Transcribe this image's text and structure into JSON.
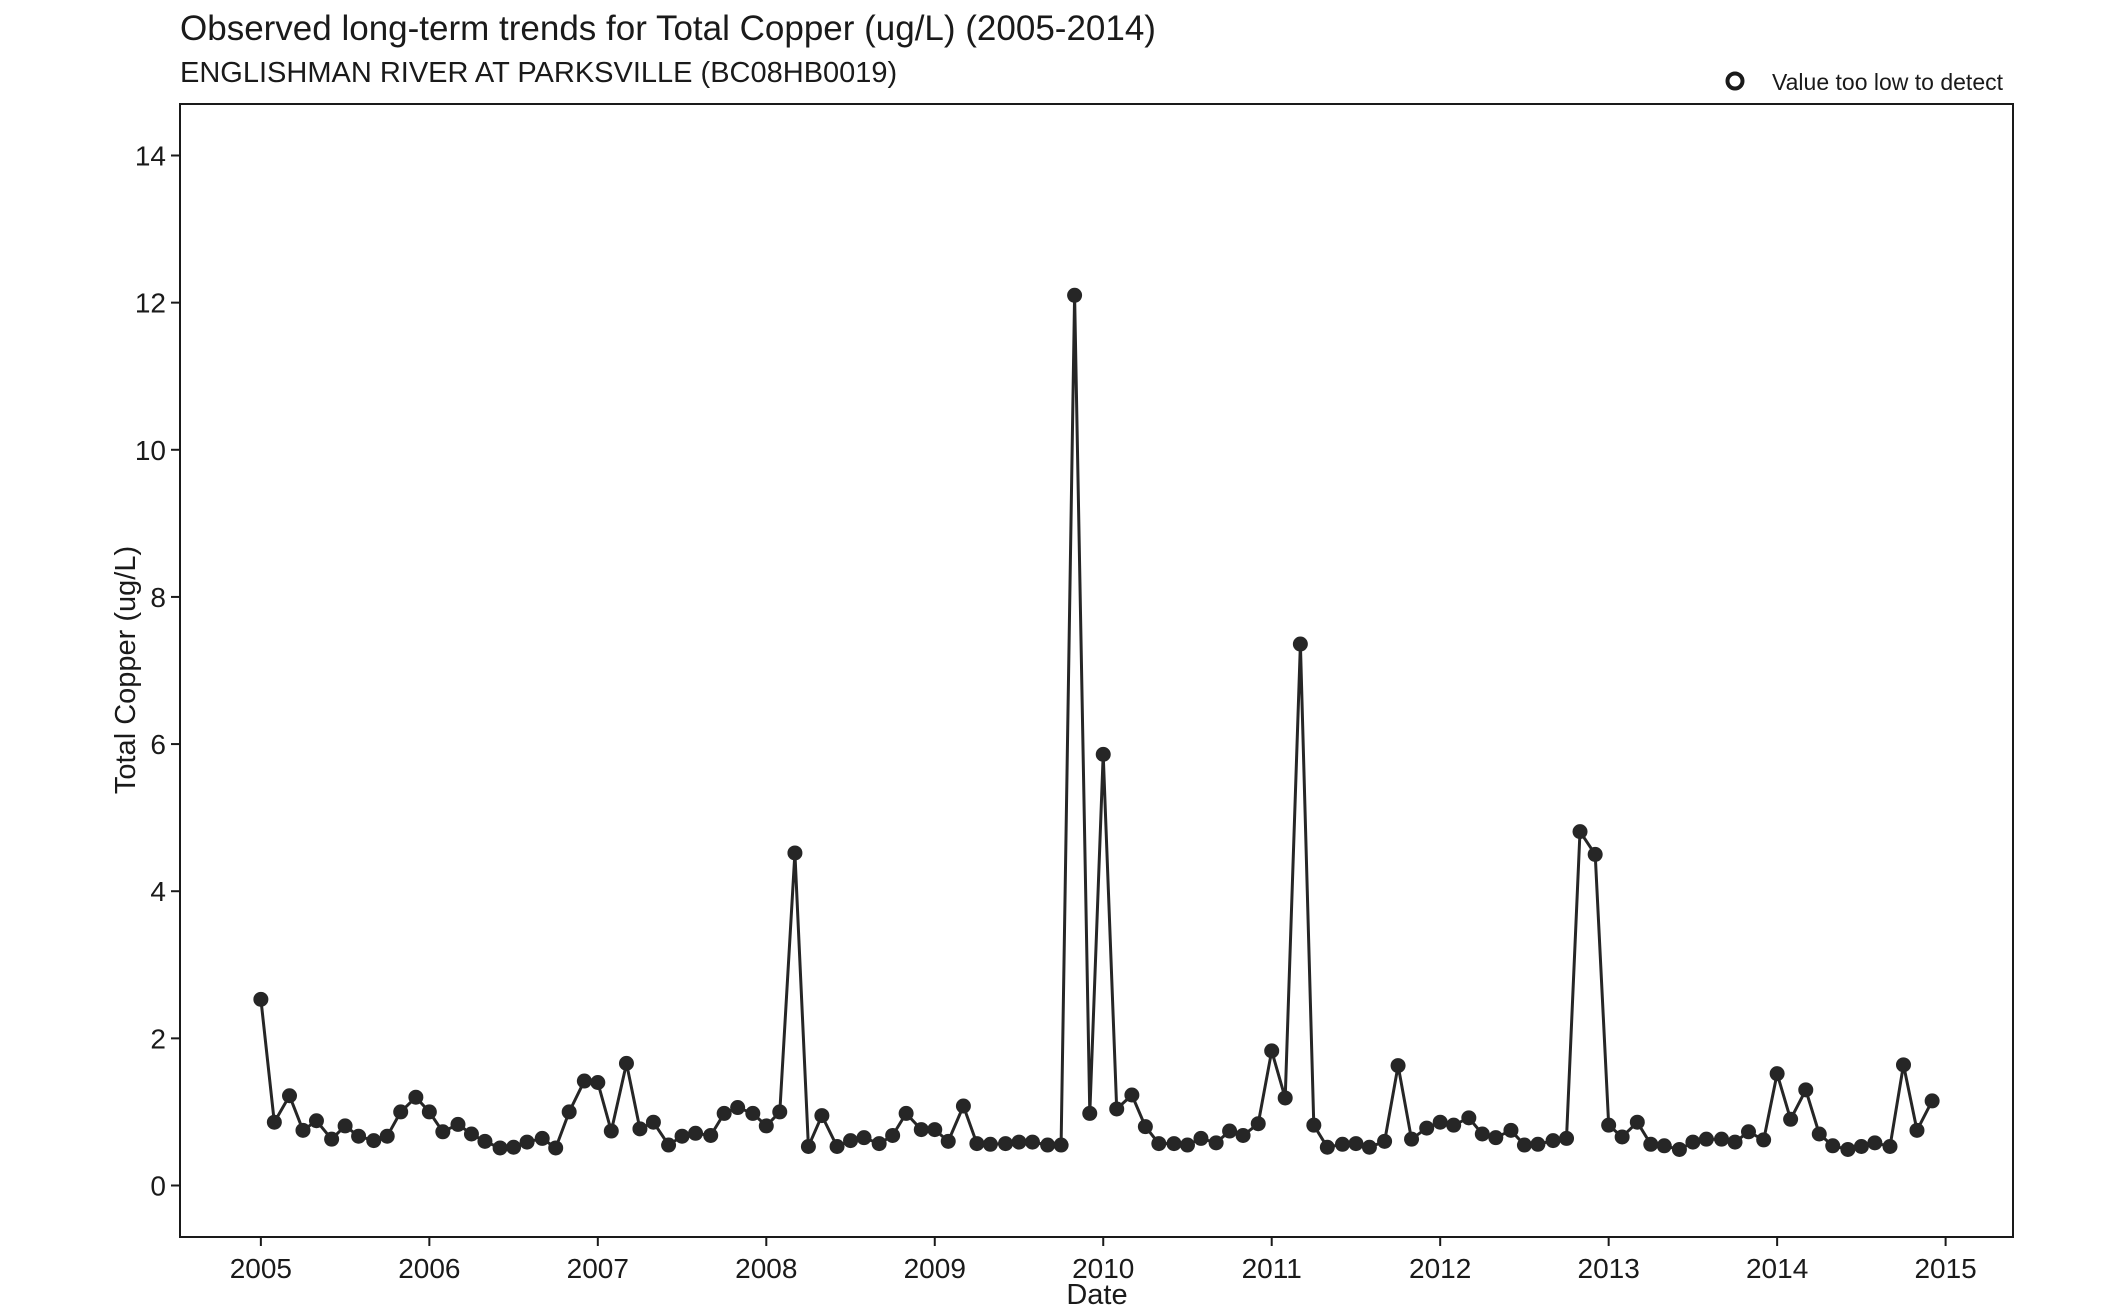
{
  "chart_data": {
    "type": "line",
    "title": "Observed long-term trends for Total Copper (ug/L) (2005-2014)",
    "subtitle": "ENGLISHMAN RIVER AT PARKSVILLE (BC08HB0019)",
    "xlabel": "Date",
    "ylabel": "Total Copper (ug/L)",
    "xlim": [
      2004.52,
      2015.4
    ],
    "ylim": [
      -0.7,
      14.7
    ],
    "x_ticks": [
      2005,
      2006,
      2007,
      2008,
      2009,
      2010,
      2011,
      2012,
      2013,
      2014,
      2015
    ],
    "x_tick_labels": [
      "2005",
      "2006",
      "2007",
      "2008",
      "2009",
      "2010",
      "2011",
      "2012",
      "2013",
      "2014",
      "2015"
    ],
    "y_ticks": [
      0,
      2,
      4,
      6,
      8,
      10,
      12,
      14
    ],
    "y_tick_labels": [
      "0",
      "2",
      "4",
      "6",
      "8",
      "10",
      "12",
      "14"
    ],
    "grid": false,
    "legend_position": "top-right",
    "legend": [
      {
        "label": "Value too low to detect",
        "marker": "open-circle"
      }
    ],
    "colors": {
      "series": "#262626",
      "frame": "#1a1a1a",
      "background": "#ffffff"
    },
    "series": [
      {
        "x": [
          2005.0,
          2005.08,
          2005.17,
          2005.25,
          2005.33,
          2005.42,
          2005.5,
          2005.58,
          2005.67,
          2005.75,
          2005.83,
          2005.92,
          2006.0,
          2006.08,
          2006.17,
          2006.25,
          2006.33,
          2006.42,
          2006.5,
          2006.58,
          2006.67,
          2006.75,
          2006.83,
          2006.92,
          2007.0,
          2007.08,
          2007.17,
          2007.25,
          2007.33,
          2007.42,
          2007.5,
          2007.58,
          2007.67,
          2007.75,
          2007.83,
          2007.92,
          2008.0,
          2008.08,
          2008.17,
          2008.25,
          2008.33,
          2008.42,
          2008.5,
          2008.58,
          2008.67,
          2008.75,
          2008.83,
          2008.92,
          2009.0,
          2009.08,
          2009.17,
          2009.25,
          2009.33,
          2009.42,
          2009.5,
          2009.58,
          2009.67,
          2009.75,
          2009.83,
          2009.92,
          2010.0,
          2010.08,
          2010.17,
          2010.25,
          2010.33,
          2010.42,
          2010.5,
          2010.58,
          2010.67,
          2010.75,
          2010.83,
          2010.92,
          2011.0,
          2011.08,
          2011.17,
          2011.25,
          2011.33,
          2011.42,
          2011.5,
          2011.58,
          2011.67,
          2011.75,
          2011.83,
          2011.92,
          2012.0,
          2012.08,
          2012.17,
          2012.25,
          2012.33,
          2012.42,
          2012.5,
          2012.58,
          2012.67,
          2012.75,
          2012.83,
          2012.92,
          2013.0,
          2013.08,
          2013.17,
          2013.25,
          2013.33,
          2013.42,
          2013.5,
          2013.58,
          2013.67,
          2013.75,
          2013.83,
          2013.92,
          2014.0,
          2014.08,
          2014.17,
          2014.25,
          2014.33,
          2014.42,
          2014.5,
          2014.58,
          2014.67,
          2014.75,
          2014.83,
          2014.92
        ],
        "y": [
          2.53,
          0.86,
          1.22,
          0.75,
          0.88,
          0.63,
          0.81,
          0.67,
          0.61,
          0.67,
          1.0,
          1.2,
          1.0,
          0.73,
          0.83,
          0.7,
          0.6,
          0.51,
          0.52,
          0.59,
          0.64,
          0.51,
          1.0,
          1.42,
          1.4,
          0.74,
          1.66,
          0.77,
          0.86,
          0.55,
          0.67,
          0.71,
          0.68,
          0.98,
          1.06,
          0.98,
          0.81,
          1.0,
          4.52,
          0.53,
          0.95,
          0.53,
          0.61,
          0.65,
          0.57,
          0.68,
          0.98,
          0.76,
          0.76,
          0.6,
          1.08,
          0.57,
          0.56,
          0.57,
          0.59,
          0.59,
          0.55,
          0.55,
          12.1,
          0.98,
          5.86,
          1.04,
          1.23,
          0.8,
          0.57,
          0.57,
          0.55,
          0.64,
          0.58,
          0.74,
          0.68,
          0.84,
          1.83,
          1.19,
          7.36,
          0.82,
          0.52,
          0.56,
          0.57,
          0.52,
          0.6,
          1.63,
          0.63,
          0.78,
          0.86,
          0.82,
          0.92,
          0.7,
          0.65,
          0.75,
          0.55,
          0.56,
          0.61,
          0.64,
          4.81,
          4.5,
          0.82,
          0.66,
          0.86,
          0.56,
          0.54,
          0.49,
          0.59,
          0.63,
          0.63,
          0.59,
          0.73,
          0.62,
          1.52,
          0.9,
          1.3,
          0.7,
          0.54,
          0.49,
          0.53,
          0.58,
          0.53,
          1.64,
          0.75,
          1.15
        ]
      }
    ]
  }
}
